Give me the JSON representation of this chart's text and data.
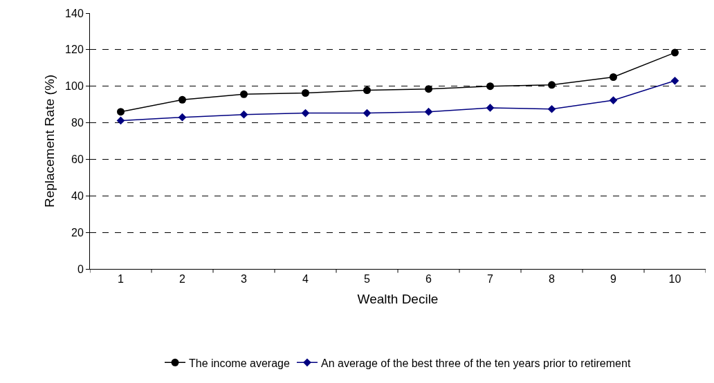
{
  "chart_data": {
    "type": "line",
    "xlabel": "Wealth Decile",
    "ylabel": "Replacement Rate (%)",
    "categories": [
      "1",
      "2",
      "3",
      "4",
      "5",
      "6",
      "7",
      "8",
      "9",
      "10"
    ],
    "series": [
      {
        "name": "The income average",
        "color": "#000000",
        "marker": "circle",
        "values": [
          86.0,
          92.6,
          95.6,
          96.3,
          97.8,
          98.5,
          100.0,
          100.7,
          105.0,
          118.4
        ]
      },
      {
        "name": "An average of the best three of the ten years prior to retirement",
        "color": "#000080",
        "marker": "diamond",
        "values": [
          81.2,
          83.0,
          84.5,
          85.3,
          85.3,
          86.0,
          88.2,
          87.5,
          92.3,
          103.0
        ]
      }
    ],
    "ylim": [
      0,
      140
    ],
    "yticks": [
      0,
      20,
      40,
      60,
      80,
      100,
      120,
      140
    ],
    "grid": "y",
    "legend": "bottom",
    "line_style": "solid"
  }
}
